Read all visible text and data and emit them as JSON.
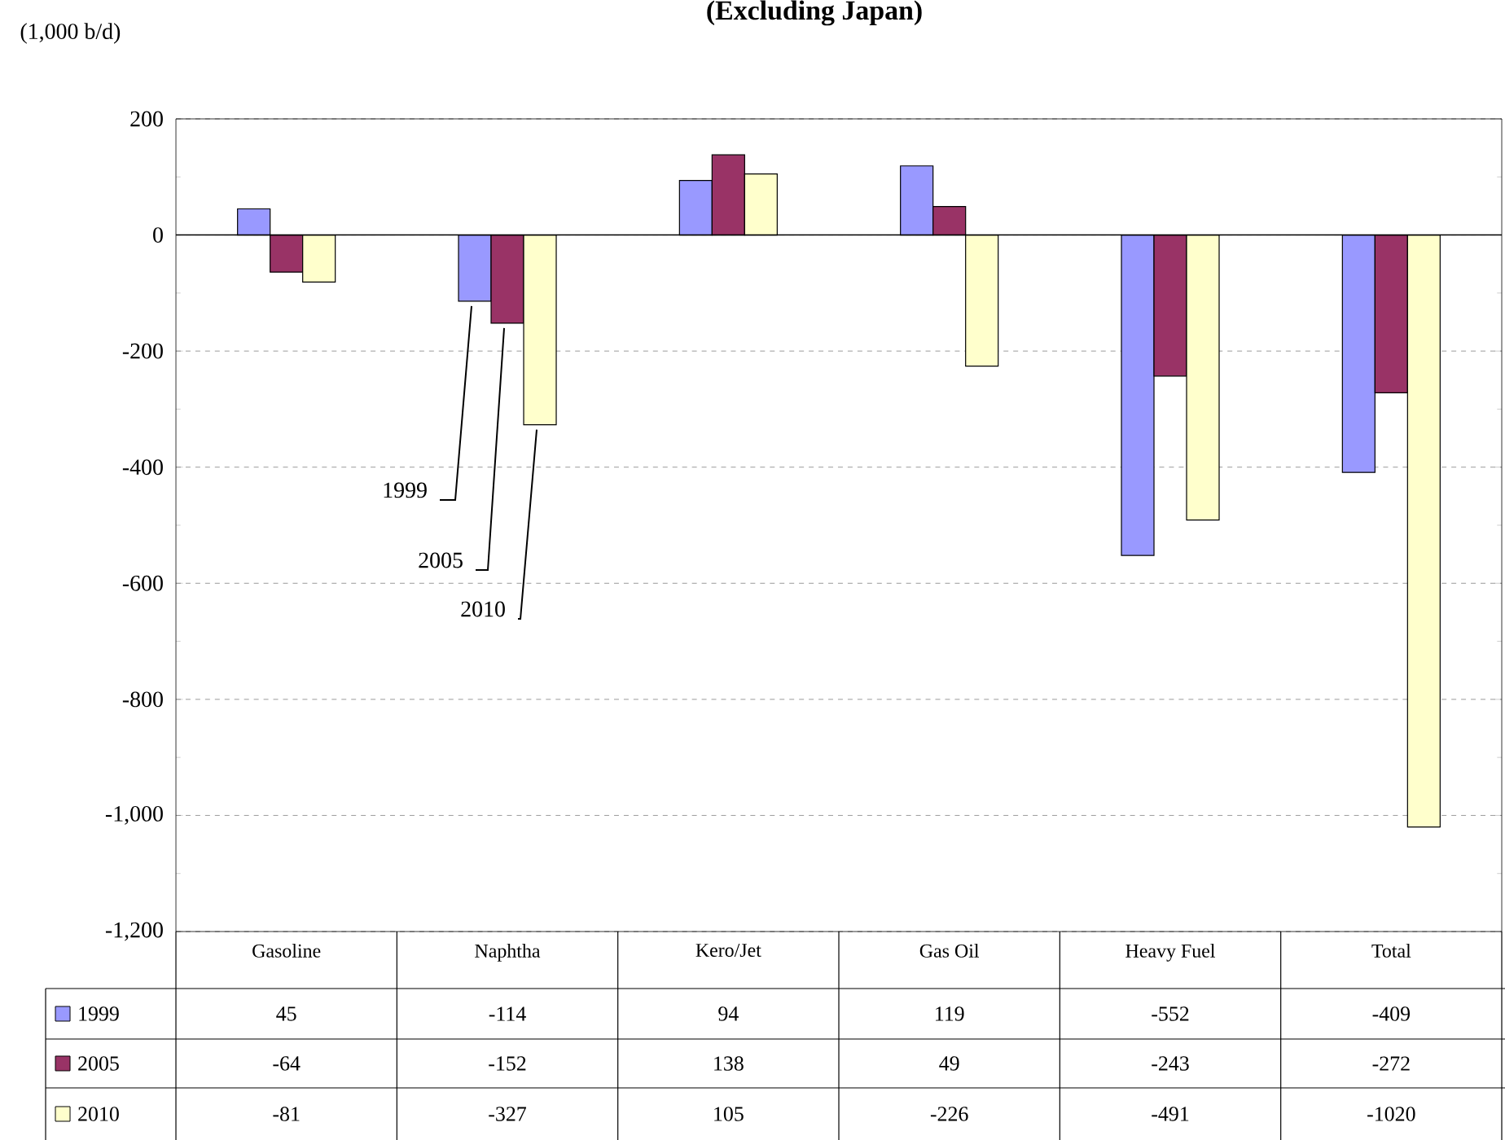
{
  "chart_data": {
    "type": "bar",
    "title": "(Excluding Japan)",
    "ylabel": "(1,000 b/d)",
    "categories": [
      "Gasoline",
      "Naphtha",
      "Kero/Jet",
      "Gas Oil",
      "Heavy Fuel",
      "Total"
    ],
    "series": [
      {
        "name": "1999",
        "color": "#9999ff",
        "values": [
          45,
          -114,
          94,
          119,
          -552,
          -409
        ]
      },
      {
        "name": "2005",
        "color": "#993366",
        "values": [
          -64,
          -152,
          138,
          49,
          -243,
          -272
        ]
      },
      {
        "name": "2010",
        "color": "#ffffcc",
        "values": [
          -81,
          -327,
          105,
          -226,
          -491,
          -1020
        ]
      }
    ],
    "ylim": [
      -1200,
      200
    ],
    "yticks": [
      {
        "value": -1200,
        "label": "-1,200"
      },
      {
        "value": -1000,
        "label": "-1,000"
      },
      -800,
      -600,
      -400,
      -200,
      0,
      200
    ],
    "grid": "y",
    "legend": "bottom",
    "data_labels": true
  }
}
